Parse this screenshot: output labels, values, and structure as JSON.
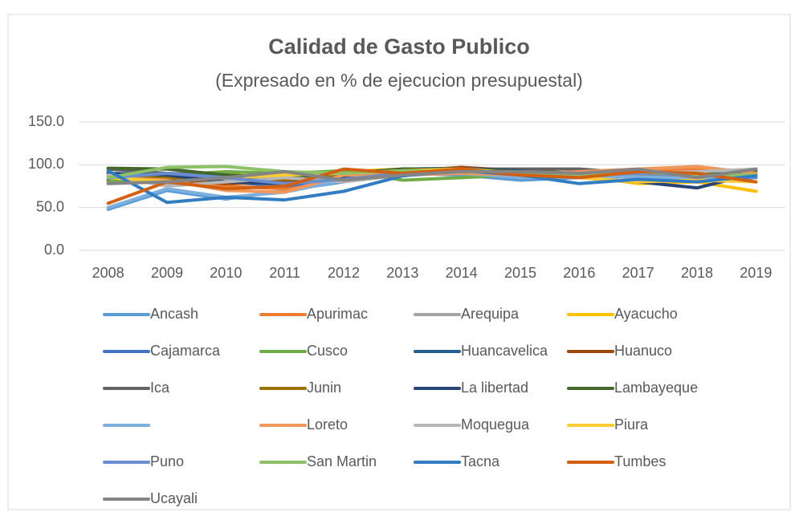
{
  "chart_data": {
    "type": "line",
    "title": "Calidad de Gasto Publico",
    "subtitle": "(Expresado en % de ejecucion presupuestal)",
    "categories": [
      "2008",
      "2009",
      "2010",
      "2011",
      "2012",
      "2013",
      "2014",
      "2015",
      "2016",
      "2017",
      "2018",
      "2019"
    ],
    "ylim": [
      0,
      150
    ],
    "yticks": [
      {
        "value": 0,
        "label": "0.0"
      },
      {
        "value": 50,
        "label": "50.0"
      },
      {
        "value": 100,
        "label": "100.0"
      },
      {
        "value": 150,
        "label": "150.0"
      }
    ],
    "grid": true,
    "series": [
      {
        "name": "Ancash",
        "color": "#5B9BD5",
        "values": [
          48,
          70,
          60,
          70,
          80,
          90,
          88,
          82,
          85,
          88,
          85,
          88
        ]
      },
      {
        "name": "Apurimac",
        "color": "#ED7D31",
        "values": [
          82,
          80,
          75,
          72,
          90,
          92,
          95,
          90,
          88,
          92,
          95,
          90
        ]
      },
      {
        "name": "Arequipa",
        "color": "#A5A5A5",
        "values": [
          85,
          78,
          82,
          88,
          85,
          90,
          92,
          88,
          90,
          92,
          88,
          93
        ]
      },
      {
        "name": "Ayacucho",
        "color": "#FFC000",
        "values": [
          80,
          85,
          90,
          82,
          92,
          95,
          93,
          90,
          88,
          78,
          80,
          69
        ]
      },
      {
        "name": "Cajamarca",
        "color": "#4472C4",
        "values": [
          82,
          85,
          80,
          75,
          85,
          92,
          95,
          93,
          88,
          85,
          82,
          85
        ]
      },
      {
        "name": "Cusco",
        "color": "#70AD47",
        "values": [
          80,
          88,
          92,
          90,
          93,
          82,
          85,
          88,
          90,
          92,
          85,
          88
        ]
      },
      {
        "name": "Huancavelica",
        "color": "#255E91",
        "values": [
          90,
          88,
          85,
          80,
          88,
          95,
          96,
          92,
          90,
          88,
          85,
          90
        ]
      },
      {
        "name": "Huanuco",
        "color": "#9E480E",
        "values": [
          85,
          82,
          78,
          80,
          90,
          92,
          97,
          93,
          90,
          88,
          90,
          85
        ]
      },
      {
        "name": "Ica",
        "color": "#636363",
        "values": [
          95,
          90,
          88,
          85,
          88,
          93,
          95,
          95,
          95,
          90,
          88,
          93
        ]
      },
      {
        "name": "Junin",
        "color": "#997300",
        "values": [
          88,
          85,
          85,
          83,
          87,
          92,
          95,
          92,
          90,
          88,
          87,
          90
        ]
      },
      {
        "name": "La libertad",
        "color": "#264478",
        "values": [
          90,
          88,
          80,
          78,
          85,
          92,
          95,
          93,
          85,
          80,
          73,
          90
        ]
      },
      {
        "name": "Lambayeque",
        "color": "#43682B",
        "values": [
          96,
          95,
          88,
          85,
          90,
          95,
          95,
          92,
          90,
          92,
          88,
          93
        ]
      },
      {
        "name": null,
        "color": "#7CAFDD",
        "values": [
          50,
          72,
          62,
          68,
          82,
          90,
          90,
          85,
          85,
          86,
          84,
          88
        ]
      },
      {
        "name": "Loreto",
        "color": "#F1975A",
        "values": [
          85,
          82,
          70,
          68,
          88,
          88,
          90,
          88,
          92,
          95,
          98,
          90
        ]
      },
      {
        "name": "Moquegua",
        "color": "#B7B7B7",
        "values": [
          88,
          75,
          80,
          85,
          80,
          88,
          92,
          90,
          88,
          90,
          92,
          95
        ]
      },
      {
        "name": "Piura",
        "color": "#FFCD33",
        "values": [
          85,
          80,
          85,
          88,
          90,
          93,
          95,
          90,
          85,
          80,
          82,
          80
        ]
      },
      {
        "name": "Puno",
        "color": "#698ED0",
        "values": [
          85,
          90,
          85,
          78,
          83,
          90,
          93,
          90,
          88,
          90,
          88,
          85
        ]
      },
      {
        "name": "San Martin",
        "color": "#8CC168",
        "values": [
          85,
          97,
          98,
          92,
          90,
          93,
          92,
          90,
          88,
          92,
          88,
          88
        ]
      },
      {
        "name": "Tacna",
        "color": "#327DC2",
        "values": [
          93,
          56,
          62,
          59,
          69,
          87,
          93,
          88,
          78,
          83,
          80,
          87
        ]
      },
      {
        "name": "Tumbes",
        "color": "#D26012",
        "values": [
          55,
          80,
          72,
          75,
          95,
          90,
          95,
          88,
          85,
          92,
          90,
          80
        ]
      },
      {
        "name": "Ucayali",
        "color": "#848484",
        "values": [
          78,
          80,
          85,
          92,
          82,
          88,
          92,
          92,
          90,
          95,
          85,
          95
        ]
      }
    ]
  }
}
